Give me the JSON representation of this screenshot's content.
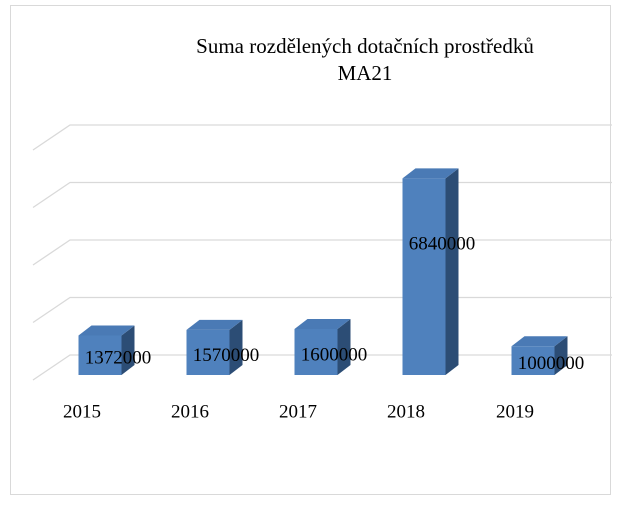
{
  "chart_data": {
    "type": "bar3d",
    "title": "Suma rozdělených dotačních prostředků MA21",
    "categories": [
      "2015",
      "2016",
      "2017",
      "2018",
      "2019"
    ],
    "values": [
      1372000,
      1570000,
      1600000,
      6840000,
      1000000
    ],
    "color": "#4f81bd",
    "ylim": [
      0,
      8000000
    ],
    "yticks": [
      0,
      2000000,
      4000000,
      6000000,
      8000000
    ],
    "grid": true
  }
}
